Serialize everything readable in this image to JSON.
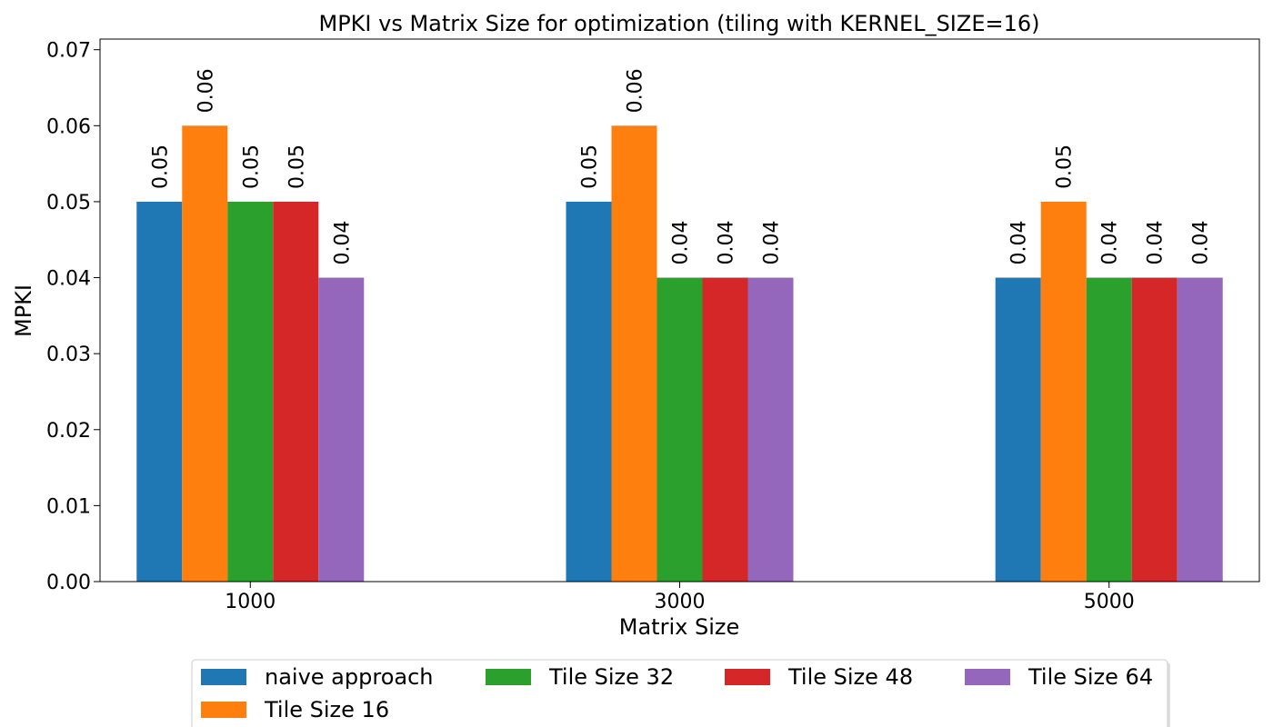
{
  "chart_data": {
    "type": "bar",
    "title": "MPKI vs Matrix Size for optimization (tiling with KERNEL_SIZE=16)",
    "xlabel": "Matrix Size",
    "ylabel": "MPKI",
    "ylim": [
      0,
      0.0714
    ],
    "yticks": [
      0.0,
      0.01,
      0.02,
      0.03,
      0.04,
      0.05,
      0.06,
      0.07
    ],
    "ytick_labels": [
      "0.00",
      "0.01",
      "0.02",
      "0.03",
      "0.04",
      "0.05",
      "0.06",
      "0.07"
    ],
    "categories": [
      "1000",
      "3000",
      "5000"
    ],
    "series": [
      {
        "name": "naive approach",
        "color": "#1f77b4",
        "values": [
          0.05,
          0.05,
          0.04
        ],
        "labels": [
          "0.05",
          "0.05",
          "0.04"
        ]
      },
      {
        "name": "Tile Size 16",
        "color": "#ff7f0e",
        "values": [
          0.06,
          0.06,
          0.05
        ],
        "labels": [
          "0.06",
          "0.06",
          "0.05"
        ]
      },
      {
        "name": "Tile Size 32",
        "color": "#2ca02c",
        "values": [
          0.05,
          0.04,
          0.04
        ],
        "labels": [
          "0.05",
          "0.04",
          "0.04"
        ]
      },
      {
        "name": "Tile Size 48",
        "color": "#d62728",
        "values": [
          0.05,
          0.04,
          0.04
        ],
        "labels": [
          "0.05",
          "0.04",
          "0.04"
        ]
      },
      {
        "name": "Tile Size 64",
        "color": "#9467bd",
        "values": [
          0.04,
          0.04,
          0.04
        ],
        "labels": [
          "0.04",
          "0.04",
          "0.04"
        ]
      }
    ],
    "legend_position": "bottom-center",
    "grid": false
  }
}
